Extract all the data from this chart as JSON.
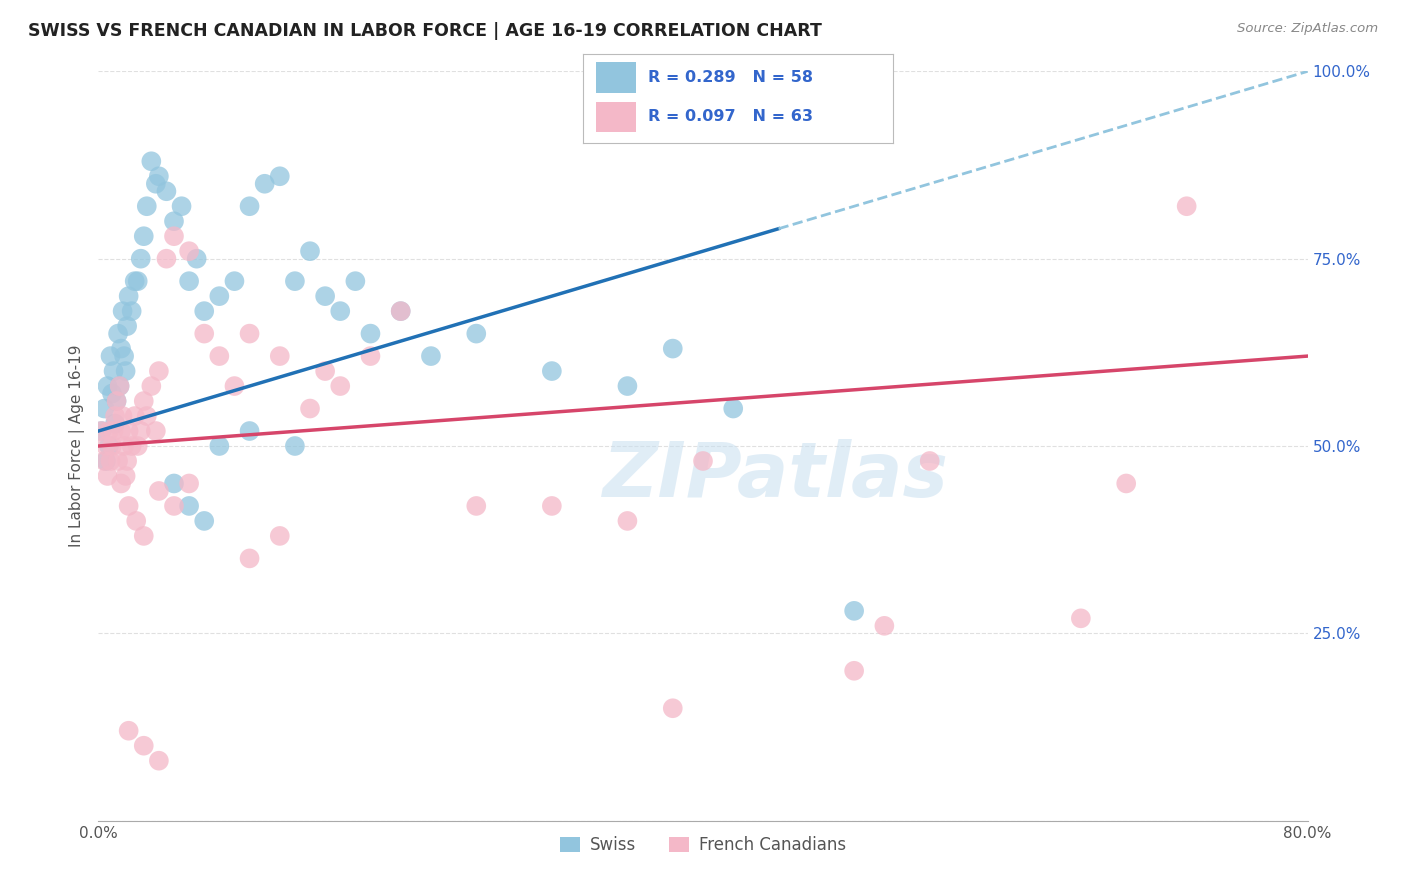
{
  "title": "SWISS VS FRENCH CANADIAN IN LABOR FORCE | AGE 16-19 CORRELATION CHART",
  "source": "Source: ZipAtlas.com",
  "ylabel": "In Labor Force | Age 16-19",
  "xlim": [
    0.0,
    0.8
  ],
  "ylim": [
    0.0,
    1.0
  ],
  "xticks": [
    0.0,
    0.2,
    0.4,
    0.6,
    0.8
  ],
  "xticklabels": [
    "0.0%",
    "",
    "",
    "",
    "80.0%"
  ],
  "yticks": [
    0.0,
    0.25,
    0.5,
    0.75,
    1.0
  ],
  "yticklabels": [
    "",
    "25.0%",
    "50.0%",
    "75.0%",
    "100.0%"
  ],
  "swiss_R": 0.289,
  "swiss_N": 58,
  "french_R": 0.097,
  "french_N": 63,
  "swiss_color": "#92c5de",
  "french_color": "#f4b8c8",
  "swiss_line_color": "#2171b5",
  "french_line_color": "#d6456a",
  "dashed_line_color": "#92c5de",
  "legend_text_color": "#3366cc",
  "tick_color": "#3366cc",
  "watermark": "ZIPatlas",
  "swiss_x": [
    0.002,
    0.004,
    0.005,
    0.006,
    0.007,
    0.008,
    0.009,
    0.01,
    0.011,
    0.012,
    0.013,
    0.014,
    0.015,
    0.016,
    0.017,
    0.018,
    0.019,
    0.02,
    0.022,
    0.024,
    0.026,
    0.028,
    0.03,
    0.032,
    0.035,
    0.038,
    0.04,
    0.045,
    0.05,
    0.055,
    0.06,
    0.065,
    0.07,
    0.08,
    0.09,
    0.1,
    0.11,
    0.12,
    0.13,
    0.14,
    0.15,
    0.16,
    0.17,
    0.18,
    0.2,
    0.22,
    0.25,
    0.3,
    0.38,
    0.42,
    0.05,
    0.06,
    0.07,
    0.08,
    0.1,
    0.13,
    0.35,
    0.5
  ],
  "swiss_y": [
    0.52,
    0.55,
    0.48,
    0.58,
    0.5,
    0.62,
    0.57,
    0.6,
    0.53,
    0.56,
    0.65,
    0.58,
    0.63,
    0.68,
    0.62,
    0.6,
    0.66,
    0.7,
    0.68,
    0.72,
    0.72,
    0.75,
    0.78,
    0.82,
    0.88,
    0.85,
    0.86,
    0.84,
    0.8,
    0.82,
    0.72,
    0.75,
    0.68,
    0.7,
    0.72,
    0.82,
    0.85,
    0.86,
    0.72,
    0.76,
    0.7,
    0.68,
    0.72,
    0.65,
    0.68,
    0.62,
    0.65,
    0.6,
    0.63,
    0.55,
    0.45,
    0.42,
    0.4,
    0.5,
    0.52,
    0.5,
    0.58,
    0.28
  ],
  "french_x": [
    0.002,
    0.004,
    0.005,
    0.006,
    0.007,
    0.008,
    0.009,
    0.01,
    0.011,
    0.012,
    0.013,
    0.014,
    0.015,
    0.016,
    0.017,
    0.018,
    0.019,
    0.02,
    0.022,
    0.024,
    0.026,
    0.028,
    0.03,
    0.032,
    0.035,
    0.038,
    0.04,
    0.045,
    0.05,
    0.06,
    0.07,
    0.08,
    0.09,
    0.1,
    0.12,
    0.14,
    0.15,
    0.16,
    0.18,
    0.2,
    0.015,
    0.02,
    0.025,
    0.03,
    0.04,
    0.05,
    0.06,
    0.1,
    0.12,
    0.3,
    0.38,
    0.4,
    0.5,
    0.52,
    0.55,
    0.65,
    0.68,
    0.72,
    0.02,
    0.03,
    0.04,
    0.25,
    0.35
  ],
  "french_y": [
    0.52,
    0.48,
    0.5,
    0.46,
    0.52,
    0.48,
    0.5,
    0.52,
    0.54,
    0.56,
    0.48,
    0.58,
    0.52,
    0.54,
    0.5,
    0.46,
    0.48,
    0.52,
    0.5,
    0.54,
    0.5,
    0.52,
    0.56,
    0.54,
    0.58,
    0.52,
    0.6,
    0.75,
    0.78,
    0.76,
    0.65,
    0.62,
    0.58,
    0.65,
    0.62,
    0.55,
    0.6,
    0.58,
    0.62,
    0.68,
    0.45,
    0.42,
    0.4,
    0.38,
    0.44,
    0.42,
    0.45,
    0.35,
    0.38,
    0.42,
    0.15,
    0.48,
    0.2,
    0.26,
    0.48,
    0.27,
    0.45,
    0.82,
    0.12,
    0.1,
    0.08,
    0.42,
    0.4
  ],
  "bg_color": "#ffffff",
  "grid_color": "#e0e0e0"
}
